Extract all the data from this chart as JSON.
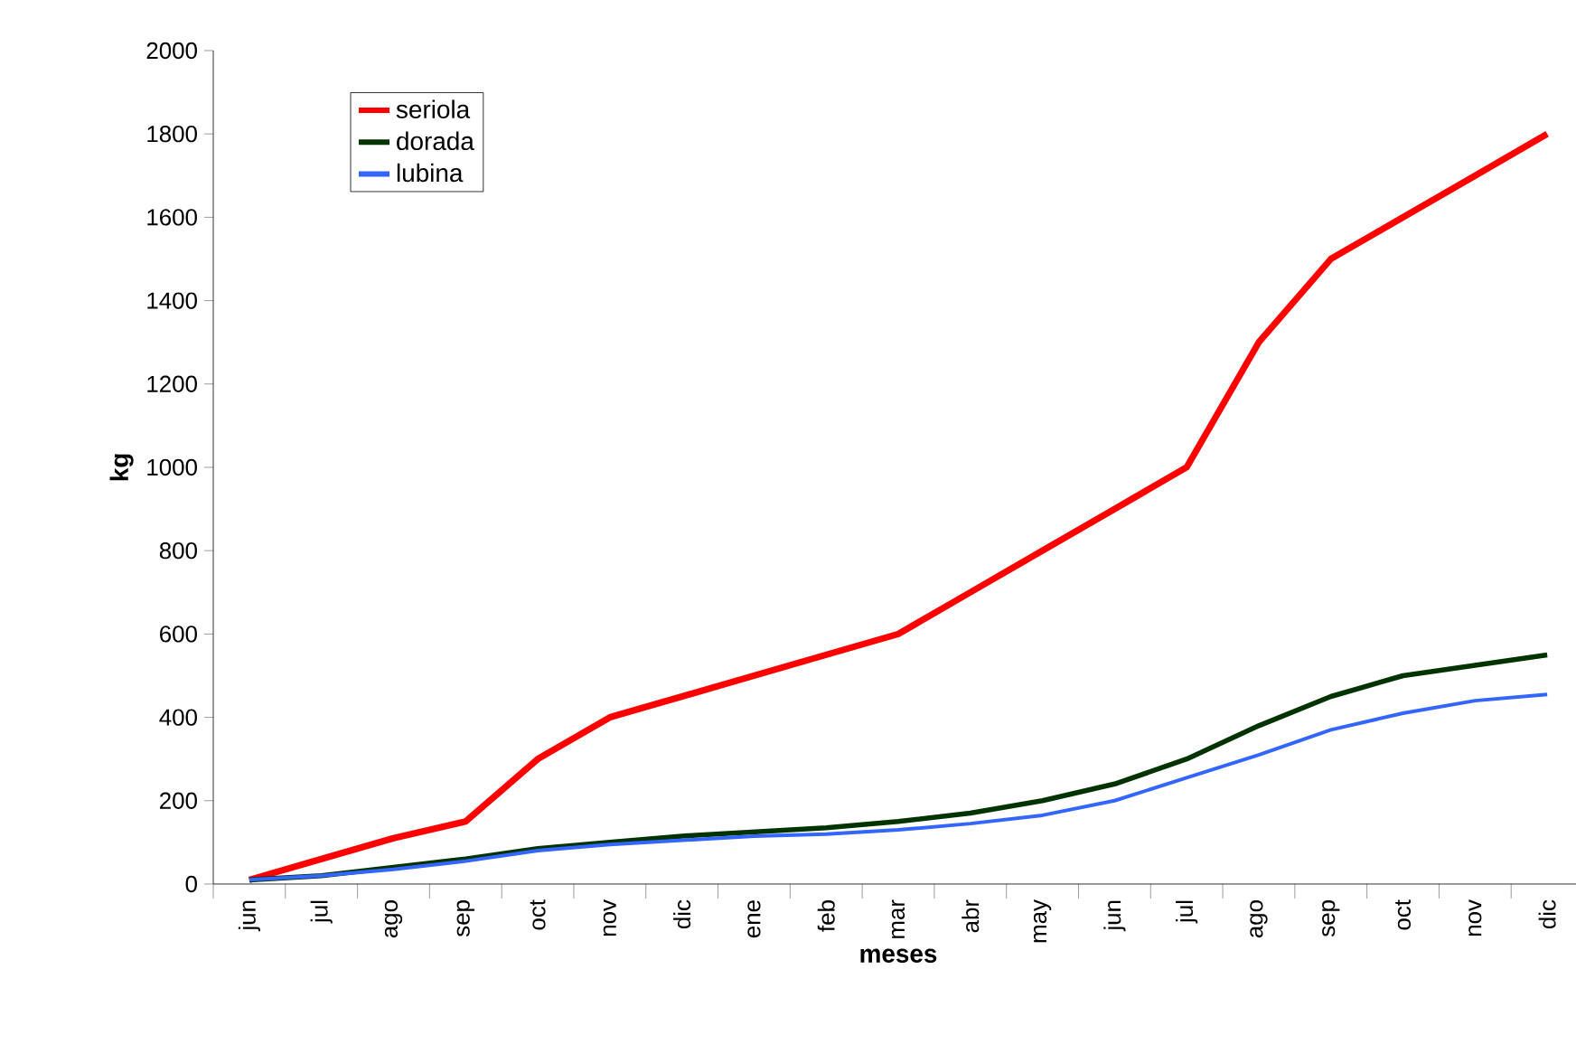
{
  "chart_data": {
    "type": "line",
    "xlabel": "meses",
    "ylabel": "kg",
    "categories": [
      "jun",
      "jul",
      "ago",
      "sep",
      "oct",
      "nov",
      "dic",
      "ene",
      "feb",
      "mar",
      "abr",
      "may",
      "jun",
      "jul",
      "ago",
      "sep",
      "oct",
      "nov",
      "dic"
    ],
    "series": [
      {
        "name": "seriola",
        "color": "#ff0000",
        "values": [
          10,
          60,
          110,
          150,
          300,
          400,
          450,
          500,
          550,
          600,
          700,
          800,
          900,
          1000,
          1300,
          1500,
          1600,
          1700,
          1800
        ]
      },
      {
        "name": "dorada",
        "color": "#003300",
        "values": [
          10,
          20,
          40,
          60,
          85,
          100,
          115,
          125,
          135,
          150,
          170,
          200,
          240,
          300,
          380,
          450,
          500,
          525,
          550
        ]
      },
      {
        "name": "lubina",
        "color": "#3366ff",
        "values": [
          10,
          20,
          35,
          55,
          80,
          95,
          105,
          115,
          120,
          130,
          145,
          165,
          200,
          255,
          310,
          370,
          410,
          440,
          455
        ]
      }
    ],
    "ylim": [
      0,
      2000
    ],
    "yticks": [
      0,
      200,
      400,
      600,
      800,
      1000,
      1200,
      1400,
      1600,
      1800,
      2000
    ],
    "grid": false,
    "legend": "top left",
    "marker": "none",
    "line_style": "solid"
  }
}
